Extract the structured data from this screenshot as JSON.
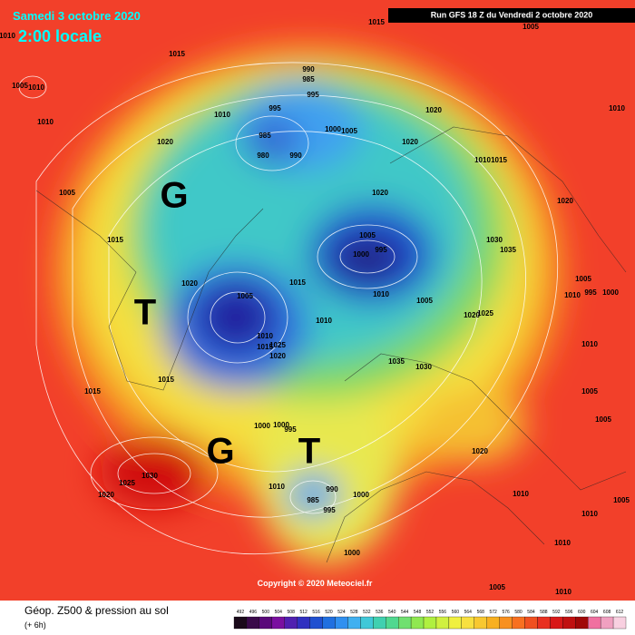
{
  "header": {
    "date": "Samedi 3 octobre 2020",
    "time": "2:00 locale",
    "run": "Run GFS 18 Z du Vendredi 2 octobre 2020"
  },
  "copyright": "Copyright © 2020 Meteociel.fr",
  "footer": {
    "title": "Géop. Z500 & pression au sol",
    "step": "(+ 6h)"
  },
  "systems": [
    "G",
    "T",
    "G",
    "T"
  ],
  "isobars": [
    "1015",
    "1005",
    "1010",
    "1015",
    "1005",
    "1010",
    "990",
    "985",
    "995",
    "1010",
    "995",
    "1010",
    "1020",
    "1010",
    "985",
    "1000",
    "1005",
    "980",
    "990",
    "1020",
    "1020",
    "1010",
    "1015",
    "1005",
    "1020",
    "1020",
    "1015",
    "1005",
    "995",
    "1030",
    "1035",
    "1000",
    "1005",
    "1020",
    "1015",
    "1005",
    "1010",
    "995",
    "1000",
    "1010",
    "1005",
    "1025",
    "1020",
    "1010",
    "1010",
    "1015",
    "1025",
    "1020",
    "1010",
    "1035",
    "1030",
    "1015",
    "1015",
    "1005",
    "1000",
    "1000",
    "995",
    "1005",
    "1020",
    "1030",
    "1025",
    "1020",
    "1010",
    "990",
    "985",
    "995",
    "1000",
    "1010",
    "1005",
    "1010",
    "1000",
    "1010",
    "1005",
    "1010"
  ],
  "scale": [
    "492",
    "496",
    "500",
    "504",
    "508",
    "512",
    "516",
    "520",
    "524",
    "528",
    "532",
    "536",
    "540",
    "544",
    "548",
    "552",
    "556",
    "560",
    "564",
    "568",
    "572",
    "576",
    "580",
    "584",
    "588",
    "592",
    "596",
    "600",
    "604",
    "608",
    "612"
  ]
}
